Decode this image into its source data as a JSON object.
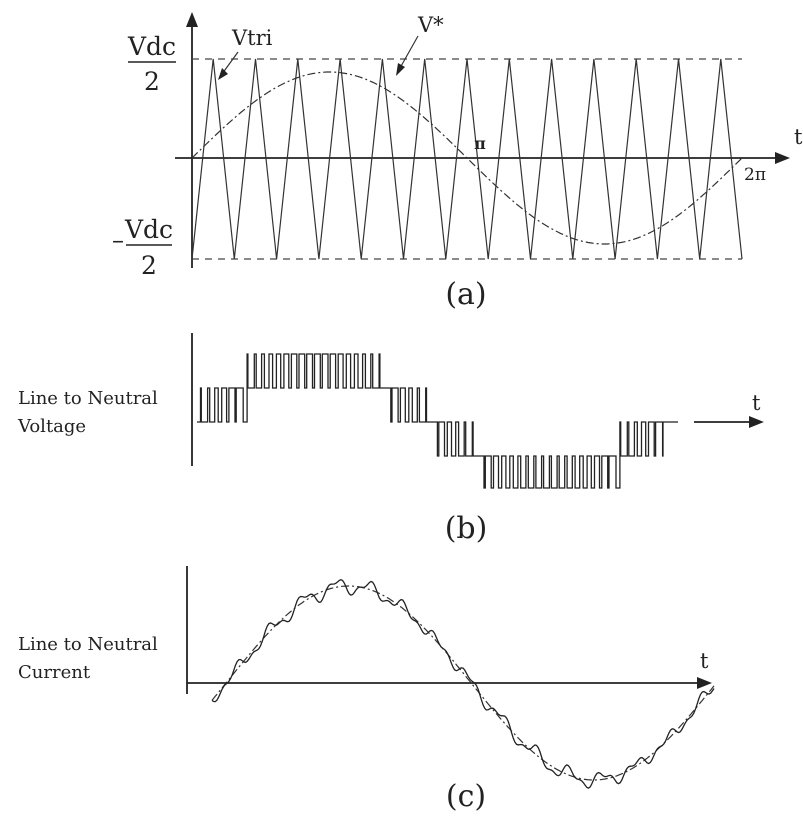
{
  "panel_a": {
    "vdc_top": "Vdc",
    "denom_top": "2",
    "minus_sign": "–",
    "vdc_bottom": "Vdc",
    "denom_bottom": "2",
    "vtri_label": "Vtri",
    "vstar_label": "V*",
    "pi_label": "π",
    "two_pi_label": "2π",
    "t_label": "t",
    "caption": "(a)"
  },
  "panel_b": {
    "ylabel_line1": "Line to Neutral",
    "ylabel_line2": "Voltage",
    "t_label": "t",
    "caption": "(b)"
  },
  "panel_c": {
    "ylabel_line1": "Line to Neutral",
    "ylabel_line2": "Current",
    "t_label": "t",
    "caption": "(c)"
  },
  "chart_data": [
    {
      "type": "line",
      "x_ticks": [
        "π",
        "2π"
      ],
      "y_ticks": [
        "Vdc/2",
        "–Vdc/2"
      ],
      "xlabel": "t",
      "ylabel": "",
      "series": [
        {
          "name": "Vtri",
          "shape": "triangle carrier",
          "periods": 13
        },
        {
          "name": "V*",
          "shape": "sine reference",
          "periods": 1,
          "amplitude_fraction": 0.85
        }
      ]
    },
    {
      "type": "line",
      "xlabel": "t",
      "ylabel": "Line to Neutral Voltage",
      "series": [
        {
          "shape": "multilevel PWM",
          "levels": [
            -2,
            -1,
            0,
            1,
            2
          ]
        }
      ]
    },
    {
      "type": "line",
      "xlabel": "t",
      "ylabel": "Line to Neutral Current",
      "series": [
        {
          "shape": "sine with ripple"
        },
        {
          "shape": "ideal sine",
          "style": "dashed"
        }
      ]
    }
  ]
}
